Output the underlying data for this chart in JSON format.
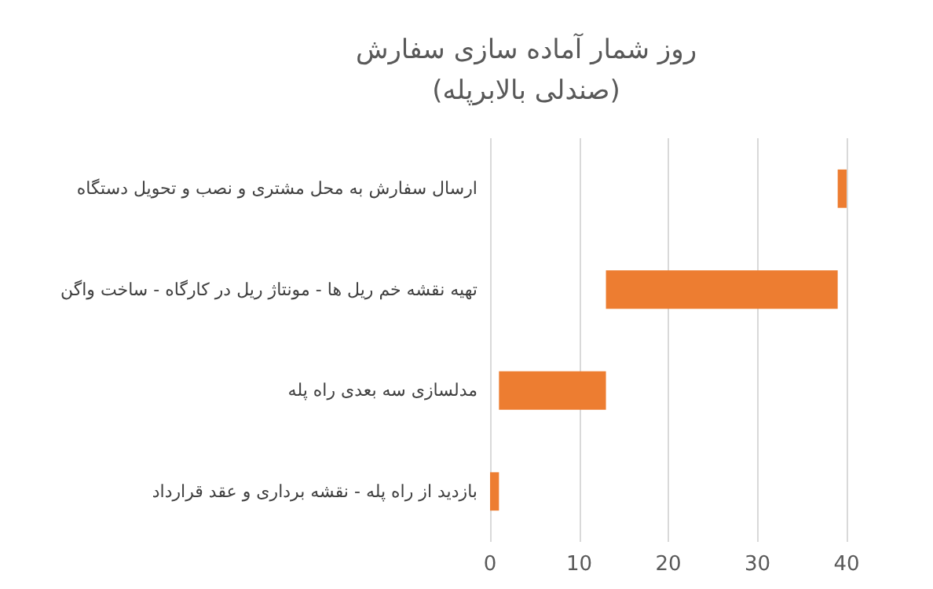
{
  "chart_data": {
    "type": "bar",
    "orientation": "horizontal",
    "title": "روز شمار آماده سازی سفارش\n(صندلی بالابرپله)",
    "categories": [
      "ارسال سفارش به محل مشتری و نصب و تحویل دستگاه",
      "تهیه نقشه خم ریل ها - مونتاژ ریل در کارگاه - ساخت واگن",
      "مدلسازی سه بعدی راه پله",
      "بازدید از راه پله - نقشه برداری و عقد قرارداد"
    ],
    "base": [
      39,
      13,
      1,
      0
    ],
    "values": [
      1,
      26,
      12,
      1
    ],
    "color": "#ed7d31",
    "xlim": [
      0,
      40
    ],
    "xticks": [
      0,
      10,
      20,
      30,
      40
    ],
    "grid": "x"
  }
}
